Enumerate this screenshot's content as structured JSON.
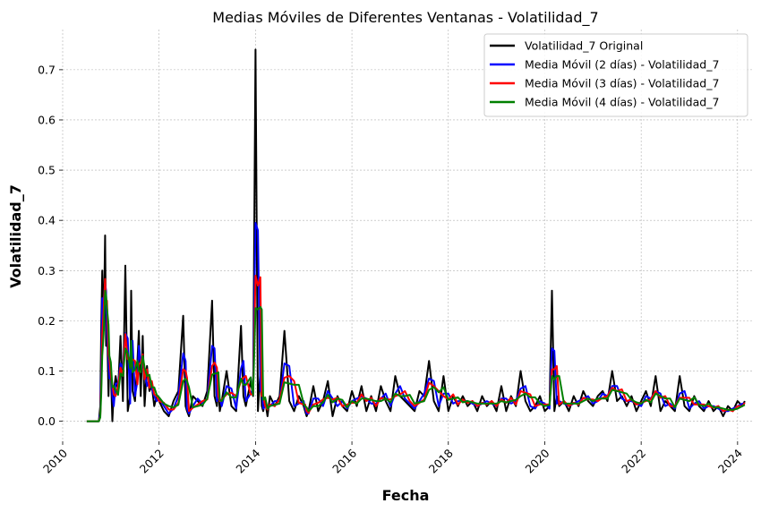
{
  "chart_data": {
    "type": "line",
    "title": "Medias Móviles de Diferentes Ventanas - Volatilidad_7",
    "xlabel": "Fecha",
    "ylabel": "Volatilidad_7",
    "xlim": [
      2010.0,
      2024.3
    ],
    "ylim": [
      -0.04,
      0.78
    ],
    "x_ticks": [
      "2010",
      "2012",
      "2014",
      "2016",
      "2018",
      "2020",
      "2022",
      "2024"
    ],
    "y_ticks": [
      "0.0",
      "0.1",
      "0.2",
      "0.3",
      "0.4",
      "0.5",
      "0.6",
      "0.7"
    ],
    "grid": true,
    "legend_position": "top-right",
    "series": [
      {
        "name": "Volatilidad_7 Original",
        "color": "#000000"
      },
      {
        "name": "Media Móvil (2 días) - Volatilidad_7",
        "color": "#0000ff"
      },
      {
        "name": "Media Móvil (3 días) - Volatilidad_7",
        "color": "#ff0000"
      },
      {
        "name": "Media Móvil (4 días) - Volatilidad_7",
        "color": "#008000"
      }
    ],
    "x": [
      2010.5,
      2010.7,
      2010.75,
      2010.78,
      2010.8,
      2010.82,
      2010.85,
      2010.88,
      2010.9,
      2010.92,
      2010.95,
      2010.97,
      2011.0,
      2011.03,
      2011.06,
      2011.1,
      2011.15,
      2011.2,
      2011.25,
      2011.3,
      2011.35,
      2011.4,
      2011.42,
      2011.45,
      2011.5,
      2011.55,
      2011.58,
      2011.62,
      2011.66,
      2011.7,
      2011.75,
      2011.8,
      2011.85,
      2011.9,
      2011.95,
      2012.0,
      2012.1,
      2012.2,
      2012.3,
      2012.4,
      2012.5,
      2012.55,
      2012.58,
      2012.62,
      2012.7,
      2012.8,
      2012.9,
      2013.0,
      2013.1,
      2013.15,
      2013.2,
      2013.23,
      2013.26,
      2013.3,
      2013.4,
      2013.5,
      2013.6,
      2013.7,
      2013.75,
      2013.8,
      2013.9,
      2013.95,
      2014.0,
      2014.05,
      2014.1,
      2014.13,
      2014.16,
      2014.2,
      2014.25,
      2014.3,
      2014.4,
      2014.5,
      2014.6,
      2014.7,
      2014.8,
      2014.9,
      2015.0,
      2015.03,
      2015.06,
      2015.1,
      2015.2,
      2015.3,
      2015.4,
      2015.5,
      2015.6,
      2015.7,
      2015.8,
      2015.9,
      2016.0,
      2016.1,
      2016.2,
      2016.3,
      2016.4,
      2016.5,
      2016.6,
      2016.7,
      2016.8,
      2016.9,
      2017.0,
      2017.1,
      2017.2,
      2017.3,
      2017.4,
      2017.5,
      2017.6,
      2017.7,
      2017.8,
      2017.9,
      2018.0,
      2018.1,
      2018.2,
      2018.3,
      2018.4,
      2018.5,
      2018.6,
      2018.7,
      2018.8,
      2018.9,
      2019.0,
      2019.1,
      2019.2,
      2019.3,
      2019.4,
      2019.5,
      2019.6,
      2019.7,
      2019.8,
      2019.9,
      2020.0,
      2020.1,
      2020.15,
      2020.2,
      2020.25,
      2020.3,
      2020.4,
      2020.5,
      2020.6,
      2020.7,
      2020.8,
      2020.9,
      2021.0,
      2021.1,
      2021.2,
      2021.3,
      2021.4,
      2021.5,
      2021.6,
      2021.7,
      2021.8,
      2021.9,
      2022.0,
      2022.1,
      2022.2,
      2022.3,
      2022.4,
      2022.5,
      2022.6,
      2022.7,
      2022.8,
      2022.9,
      2023.0,
      2023.1,
      2023.2,
      2023.3,
      2023.4,
      2023.5,
      2023.6,
      2023.7,
      2023.8,
      2023.9,
      2024.0,
      2024.1,
      2024.15
    ],
    "y_original": [
      0.0,
      0.0,
      0.0,
      0.03,
      0.19,
      0.3,
      0.18,
      0.37,
      0.15,
      0.2,
      0.05,
      0.12,
      0.1,
      0.0,
      0.06,
      0.09,
      0.06,
      0.17,
      0.04,
      0.31,
      0.02,
      0.05,
      0.26,
      0.06,
      0.04,
      0.12,
      0.18,
      0.05,
      0.17,
      0.03,
      0.11,
      0.06,
      0.07,
      0.03,
      0.05,
      0.04,
      0.02,
      0.01,
      0.04,
      0.06,
      0.21,
      0.03,
      0.02,
      0.01,
      0.05,
      0.04,
      0.03,
      0.06,
      0.24,
      0.05,
      0.03,
      0.07,
      0.02,
      0.04,
      0.1,
      0.03,
      0.02,
      0.19,
      0.05,
      0.03,
      0.08,
      0.05,
      0.74,
      0.02,
      0.1,
      0.03,
      0.02,
      0.04,
      0.01,
      0.05,
      0.03,
      0.05,
      0.18,
      0.04,
      0.02,
      0.05,
      0.03,
      0.02,
      0.01,
      0.02,
      0.07,
      0.02,
      0.04,
      0.08,
      0.01,
      0.05,
      0.03,
      0.02,
      0.06,
      0.03,
      0.07,
      0.02,
      0.05,
      0.02,
      0.07,
      0.04,
      0.02,
      0.09,
      0.05,
      0.04,
      0.03,
      0.02,
      0.06,
      0.05,
      0.12,
      0.04,
      0.02,
      0.09,
      0.02,
      0.05,
      0.03,
      0.05,
      0.03,
      0.04,
      0.02,
      0.05,
      0.03,
      0.04,
      0.02,
      0.07,
      0.02,
      0.05,
      0.03,
      0.1,
      0.04,
      0.02,
      0.03,
      0.05,
      0.02,
      0.03,
      0.26,
      0.02,
      0.05,
      0.03,
      0.04,
      0.02,
      0.05,
      0.03,
      0.06,
      0.04,
      0.03,
      0.05,
      0.06,
      0.04,
      0.1,
      0.04,
      0.05,
      0.03,
      0.05,
      0.02,
      0.04,
      0.06,
      0.03,
      0.09,
      0.02,
      0.04,
      0.03,
      0.02,
      0.09,
      0.03,
      0.02,
      0.05,
      0.03,
      0.02,
      0.04,
      0.02,
      0.03,
      0.01,
      0.03,
      0.02,
      0.04,
      0.03,
      0.04
    ]
  }
}
